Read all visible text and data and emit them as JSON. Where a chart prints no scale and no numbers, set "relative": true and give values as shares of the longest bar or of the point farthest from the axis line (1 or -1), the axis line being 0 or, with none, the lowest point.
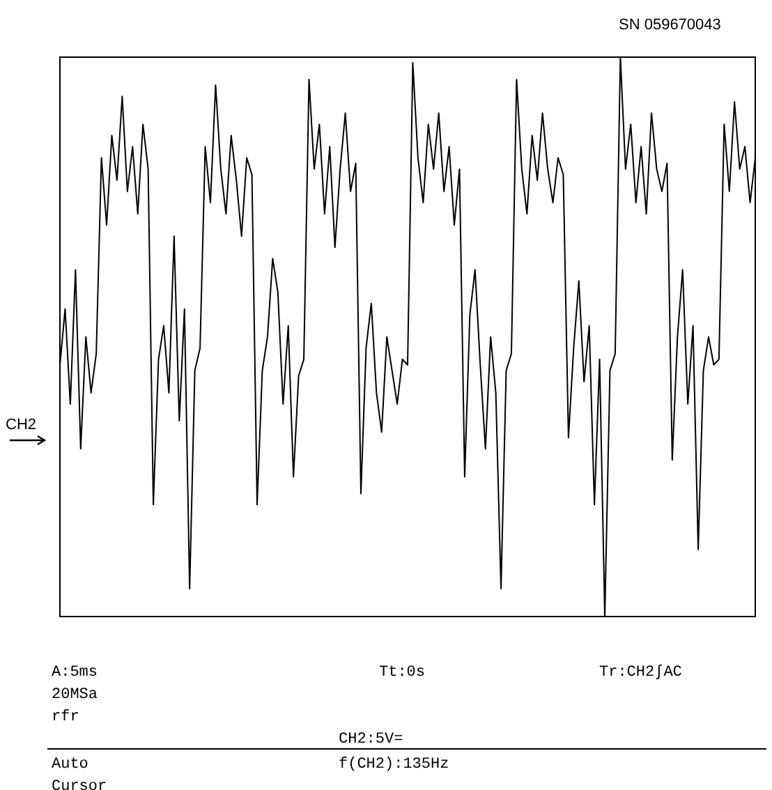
{
  "chart_data": {
    "type": "line",
    "relative": true,
    "grid": false,
    "legend": false,
    "marker": "none",
    "line_style": "solid",
    "categories": [
      null,
      null,
      null,
      null,
      null,
      null,
      null,
      null,
      null,
      null,
      null,
      null,
      null,
      null,
      null,
      null,
      null,
      null,
      null,
      null,
      null,
      null,
      null,
      null,
      null,
      null,
      null,
      null,
      null,
      null,
      null,
      null,
      null,
      null,
      null,
      null,
      null,
      null,
      null,
      null,
      null,
      null,
      null,
      null,
      null,
      null,
      null,
      null,
      null,
      null,
      null,
      null,
      null,
      null,
      null,
      null,
      null,
      null,
      null,
      null,
      null,
      null,
      null,
      null,
      null,
      null,
      null,
      null,
      null,
      null,
      null,
      null,
      null,
      null,
      null,
      null,
      null,
      null,
      null,
      null,
      null,
      null,
      null,
      null,
      null,
      null,
      null,
      null,
      null,
      null,
      null,
      null,
      null,
      null,
      null,
      null,
      null,
      null,
      null,
      null,
      null,
      null,
      null,
      null,
      null,
      null,
      null,
      null,
      null,
      null,
      null,
      null,
      null,
      null,
      null,
      null,
      null,
      null,
      null,
      null,
      null,
      null,
      null,
      null,
      null,
      null,
      null,
      null,
      null,
      null,
      null,
      null,
      null,
      null,
      null
    ],
    "series": [
      {
        "color": "#000000",
        "values": [
          0.45,
          0.55,
          0.38,
          0.62,
          0.3,
          0.5,
          0.4,
          0.47,
          0.82,
          0.7,
          0.86,
          0.78,
          0.93,
          0.76,
          0.84,
          0.72,
          0.88,
          0.8,
          0.2,
          0.46,
          0.52,
          0.4,
          0.68,
          0.35,
          0.55,
          0.05,
          0.44,
          0.48,
          0.84,
          0.74,
          0.95,
          0.8,
          0.72,
          0.86,
          0.78,
          0.68,
          0.82,
          0.79,
          0.2,
          0.44,
          0.5,
          0.64,
          0.58,
          0.38,
          0.52,
          0.25,
          0.43,
          0.46,
          0.96,
          0.8,
          0.88,
          0.72,
          0.84,
          0.66,
          0.8,
          0.9,
          0.76,
          0.81,
          0.22,
          0.48,
          0.56,
          0.4,
          0.33,
          0.5,
          0.44,
          0.38,
          0.46,
          0.45,
          0.99,
          0.82,
          0.74,
          0.88,
          0.8,
          0.9,
          0.76,
          0.84,
          0.7,
          0.8,
          0.25,
          0.54,
          0.62,
          0.45,
          0.3,
          0.5,
          0.4,
          0.05,
          0.44,
          0.47,
          0.96,
          0.8,
          0.72,
          0.86,
          0.78,
          0.9,
          0.8,
          0.74,
          0.82,
          0.79,
          0.32,
          0.48,
          0.6,
          0.42,
          0.52,
          0.2,
          0.46,
          0.0,
          0.44,
          0.47,
          1.0,
          0.8,
          0.88,
          0.74,
          0.84,
          0.72,
          0.9,
          0.8,
          0.76,
          0.81,
          0.28,
          0.5,
          0.62,
          0.38,
          0.52,
          0.12,
          0.44,
          0.5,
          0.45,
          0.46,
          0.88,
          0.76,
          0.92,
          0.8,
          0.84,
          0.74,
          0.82
        ]
      }
    ],
    "annotations": [
      "SN 059670043",
      "CH2",
      "A:5ms",
      "Tt:0s",
      "Tr:CH2∫AC",
      "20MSa",
      "rfr",
      "CH2:5V=",
      "Auto",
      "f(CH2):135Hz",
      "Cursor"
    ]
  }
}
